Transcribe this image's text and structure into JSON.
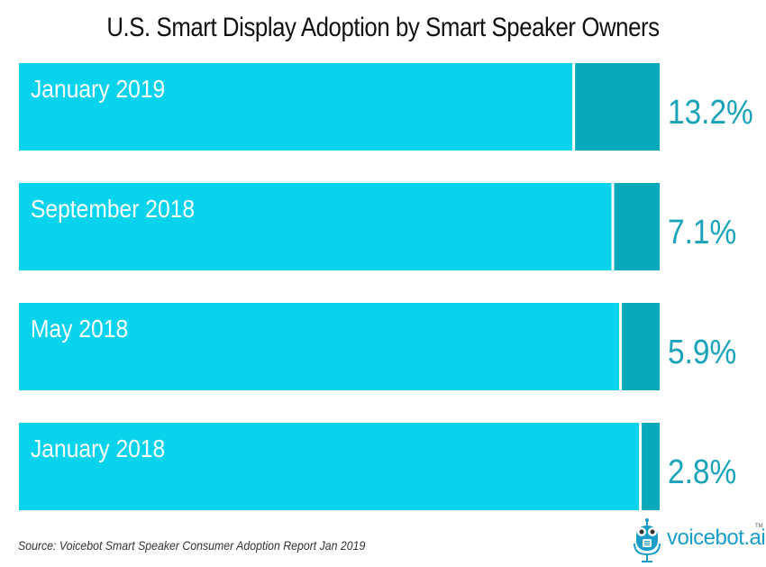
{
  "chart_data": {
    "type": "bar",
    "orientation": "horizontal",
    "title": "U.S. Smart Display Adoption by Smart Speaker Owners",
    "categories": [
      "January 2019",
      "September 2018",
      "May 2018",
      "January 2018"
    ],
    "values": [
      13.2,
      7.1,
      5.9,
      2.8
    ],
    "value_labels": [
      "13.2%",
      "7.1%",
      "5.9%",
      "2.8%"
    ],
    "unit": "%",
    "xlabel": "",
    "ylabel": "",
    "xlim": [
      0,
      100
    ],
    "grid": false,
    "legend": "none",
    "colors": {
      "remainder": "#07d3ec",
      "value": "#07a9bb",
      "label_text": "#ffffff",
      "value_text": "#18a3b8"
    }
  },
  "footer": {
    "source": "Source: Voicebot Smart Speaker Consumer Adoption Report Jan 2019",
    "logo_text": "voicebot.ai",
    "logo_tm": "TM"
  }
}
